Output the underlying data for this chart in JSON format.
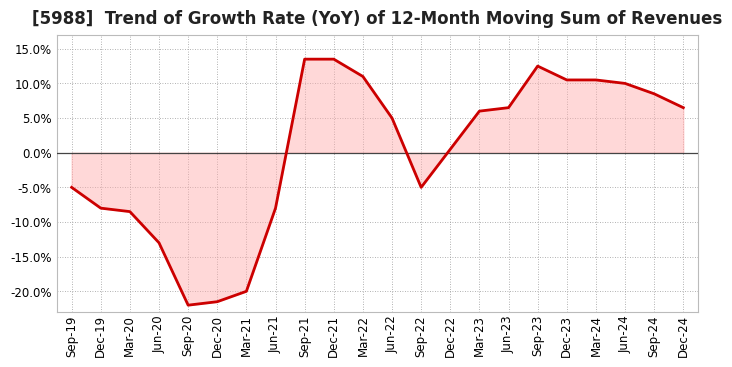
{
  "title": "[5988]  Trend of Growth Rate (YoY) of 12-Month Moving Sum of Revenues",
  "x_labels": [
    "Sep-19",
    "Dec-19",
    "Mar-20",
    "Jun-20",
    "Sep-20",
    "Dec-20",
    "Mar-21",
    "Jun-21",
    "Sep-21",
    "Dec-21",
    "Mar-22",
    "Jun-22",
    "Sep-22",
    "Dec-22",
    "Mar-23",
    "Jun-23",
    "Sep-23",
    "Dec-23",
    "Mar-24",
    "Jun-24",
    "Sep-24",
    "Dec-24"
  ],
  "y_values": [
    -5.0,
    -8.0,
    -8.5,
    -13.0,
    -22.0,
    -21.5,
    -20.0,
    -8.0,
    13.5,
    13.5,
    11.0,
    5.0,
    -5.0,
    0.5,
    6.0,
    6.5,
    12.5,
    10.5,
    10.5,
    10.0,
    8.5,
    6.5
  ],
  "line_color": "#cc0000",
  "line_width": 2.0,
  "fill_color": "#ffaaaa",
  "fill_alpha": 0.45,
  "background_color": "#ffffff",
  "plot_bg_color": "#ffffff",
  "grid_color": "#999999",
  "zero_line_color": "#444444",
  "ylim": [
    -23.0,
    17.0
  ],
  "yticks": [
    -20.0,
    -15.0,
    -10.0,
    -5.0,
    0.0,
    5.0,
    10.0,
    15.0
  ],
  "title_fontsize": 12,
  "tick_fontsize": 8.5
}
